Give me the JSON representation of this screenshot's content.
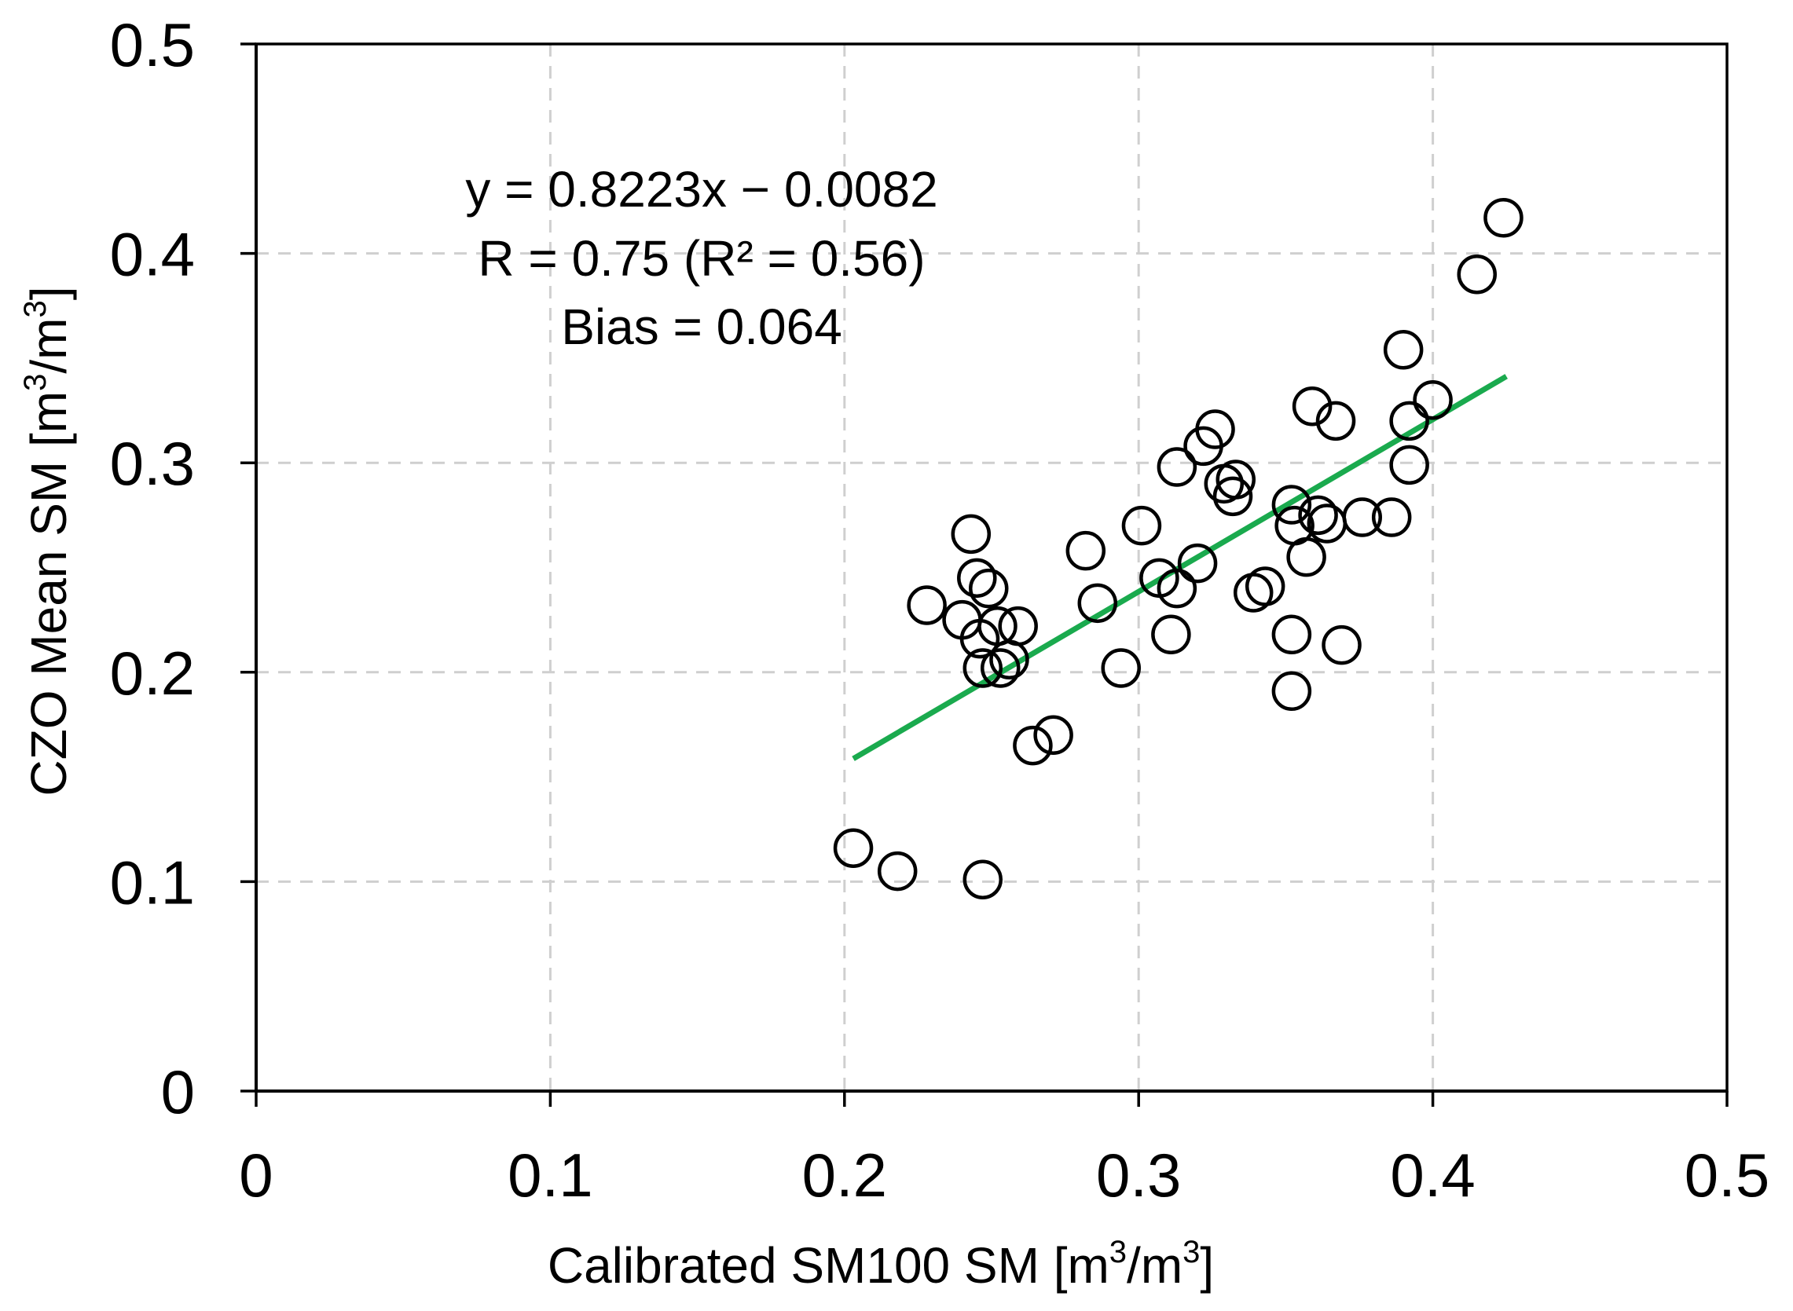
{
  "chart_data": {
    "type": "scatter",
    "xlabel": {
      "pre": "Calibrated SM100 SM [m",
      "sup1": "3",
      "mid": "/m",
      "sup2": "3",
      "post": "]"
    },
    "ylabel": {
      "pre": "CZO Mean SM [m",
      "sup1": "3",
      "mid": "/m",
      "sup2": "3",
      "post": "]"
    },
    "xlim": [
      0,
      0.5
    ],
    "ylim": [
      0,
      0.5
    ],
    "xticks": [
      0,
      0.1,
      0.2,
      0.3,
      0.4,
      0.5
    ],
    "yticks": [
      0,
      0.1,
      0.2,
      0.3,
      0.4,
      0.5
    ],
    "xtick_labels": [
      "0",
      "0.1",
      "0.2",
      "0.3",
      "0.4",
      "0.5"
    ],
    "ytick_labels": [
      "0",
      "0.1",
      "0.2",
      "0.3",
      "0.4",
      "0.5"
    ],
    "grid": true,
    "annotations": [
      "y = 0.8223x − 0.0082",
      "R = 0.75 (R² = 0.56)",
      "Bias = 0.064"
    ],
    "trendline": {
      "slope": 0.8223,
      "intercept": -0.0082,
      "x_start": 0.203,
      "x_end": 0.425,
      "color": "#1aaa4e"
    },
    "marker_color": "#000000",
    "points": [
      [
        0.203,
        0.116
      ],
      [
        0.218,
        0.105
      ],
      [
        0.247,
        0.101
      ],
      [
        0.228,
        0.232
      ],
      [
        0.24,
        0.225
      ],
      [
        0.243,
        0.266
      ],
      [
        0.245,
        0.245
      ],
      [
        0.249,
        0.24
      ],
      [
        0.246,
        0.216
      ],
      [
        0.252,
        0.222
      ],
      [
        0.247,
        0.202
      ],
      [
        0.253,
        0.202
      ],
      [
        0.256,
        0.206
      ],
      [
        0.259,
        0.222
      ],
      [
        0.264,
        0.165
      ],
      [
        0.271,
        0.17
      ],
      [
        0.282,
        0.258
      ],
      [
        0.286,
        0.233
      ],
      [
        0.294,
        0.202
      ],
      [
        0.301,
        0.27
      ],
      [
        0.307,
        0.245
      ],
      [
        0.313,
        0.24
      ],
      [
        0.311,
        0.218
      ],
      [
        0.313,
        0.298
      ],
      [
        0.32,
        0.252
      ],
      [
        0.322,
        0.308
      ],
      [
        0.326,
        0.316
      ],
      [
        0.329,
        0.29
      ],
      [
        0.333,
        0.292
      ],
      [
        0.332,
        0.284
      ],
      [
        0.339,
        0.238
      ],
      [
        0.343,
        0.241
      ],
      [
        0.352,
        0.28
      ],
      [
        0.353,
        0.27
      ],
      [
        0.352,
        0.218
      ],
      [
        0.352,
        0.191
      ],
      [
        0.357,
        0.255
      ],
      [
        0.359,
        0.327
      ],
      [
        0.361,
        0.275
      ],
      [
        0.364,
        0.271
      ],
      [
        0.367,
        0.32
      ],
      [
        0.369,
        0.213
      ],
      [
        0.376,
        0.274
      ],
      [
        0.386,
        0.274
      ],
      [
        0.39,
        0.354
      ],
      [
        0.392,
        0.32
      ],
      [
        0.392,
        0.299
      ],
      [
        0.4,
        0.33
      ],
      [
        0.415,
        0.39
      ],
      [
        0.424,
        0.417
      ]
    ]
  }
}
